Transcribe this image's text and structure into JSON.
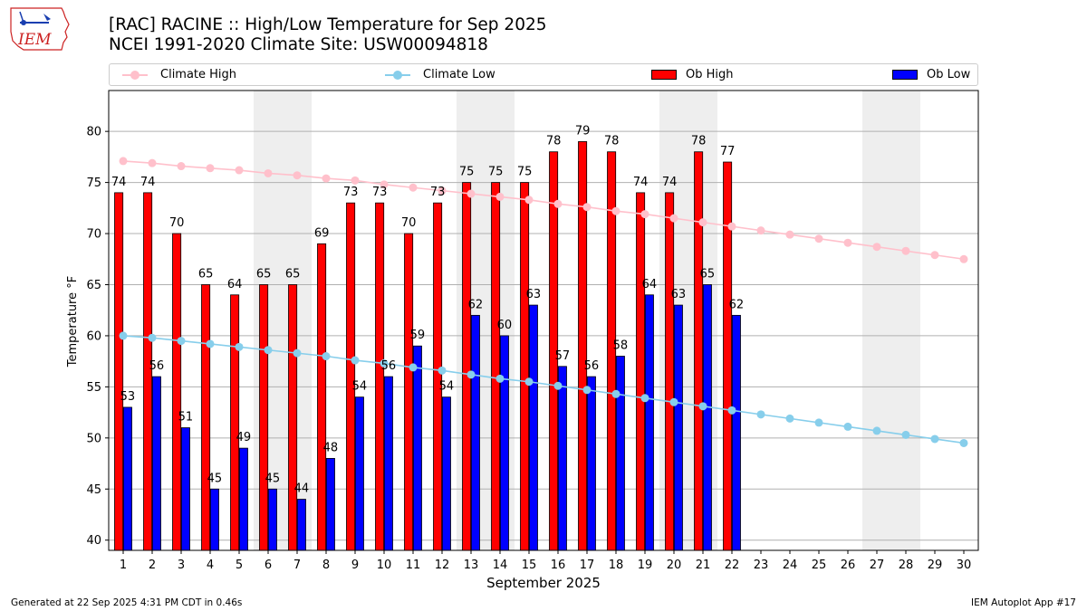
{
  "header": {
    "title_line1": "[RAC] RACINE :: High/Low Temperature for Sep 2025",
    "title_line2": "NCEI 1991-2020 Climate Site: USW00094818",
    "logo_text": "IEM"
  },
  "legend": {
    "climate_high": "Climate High",
    "climate_low": "Climate Low",
    "ob_high": "Ob High",
    "ob_low": "Ob Low"
  },
  "footer": {
    "left": "Generated at 22 Sep 2025 4:31 PM CDT in 0.46s",
    "right": "IEM Autoplot App #17"
  },
  "colors": {
    "ob_high": "#ff0000",
    "ob_low": "#0000ff",
    "climate_high": "#ffc0cb",
    "climate_low": "#87ceeb",
    "weekend_shade": "#eeeeee",
    "grid": "#b0b0b0"
  },
  "chart_data": {
    "type": "bar",
    "xlabel": "September 2025",
    "ylabel": "Temperature °F",
    "ylim": [
      39,
      84
    ],
    "yticks": [
      40,
      45,
      50,
      55,
      60,
      65,
      70,
      75,
      80
    ],
    "days": [
      1,
      2,
      3,
      4,
      5,
      6,
      7,
      8,
      9,
      10,
      11,
      12,
      13,
      14,
      15,
      16,
      17,
      18,
      19,
      20,
      21,
      22,
      23,
      24,
      25,
      26,
      27,
      28,
      29,
      30
    ],
    "weekend_spans": [
      [
        6,
        7
      ],
      [
        13,
        14
      ],
      [
        20,
        21
      ],
      [
        27,
        28
      ]
    ],
    "series": [
      {
        "name": "Ob High",
        "kind": "bar",
        "values": [
          74,
          74,
          70,
          65,
          64,
          65,
          65,
          69,
          73,
          73,
          70,
          73,
          75,
          75,
          75,
          78,
          79,
          78,
          74,
          74,
          78,
          77
        ]
      },
      {
        "name": "Ob Low",
        "kind": "bar",
        "values": [
          53,
          56,
          51,
          45,
          49,
          45,
          44,
          48,
          54,
          56,
          59,
          54,
          62,
          60,
          63,
          57,
          56,
          58,
          64,
          63,
          65,
          62
        ]
      },
      {
        "name": "Climate High",
        "kind": "line",
        "values": [
          77.1,
          76.9,
          76.6,
          76.4,
          76.2,
          75.9,
          75.7,
          75.4,
          75.2,
          74.8,
          74.5,
          74.2,
          73.9,
          73.6,
          73.3,
          72.9,
          72.6,
          72.2,
          71.9,
          71.5,
          71.1,
          70.7,
          70.3,
          69.9,
          69.5,
          69.1,
          68.7,
          68.3,
          67.9,
          67.5
        ]
      },
      {
        "name": "Climate Low",
        "kind": "line",
        "values": [
          60.0,
          59.8,
          59.5,
          59.2,
          58.9,
          58.6,
          58.3,
          58.0,
          57.6,
          57.3,
          56.9,
          56.6,
          56.2,
          55.8,
          55.5,
          55.1,
          54.7,
          54.3,
          53.9,
          53.5,
          53.1,
          52.7,
          52.3,
          51.9,
          51.5,
          51.1,
          50.7,
          50.3,
          49.9,
          49.5
        ]
      }
    ]
  }
}
